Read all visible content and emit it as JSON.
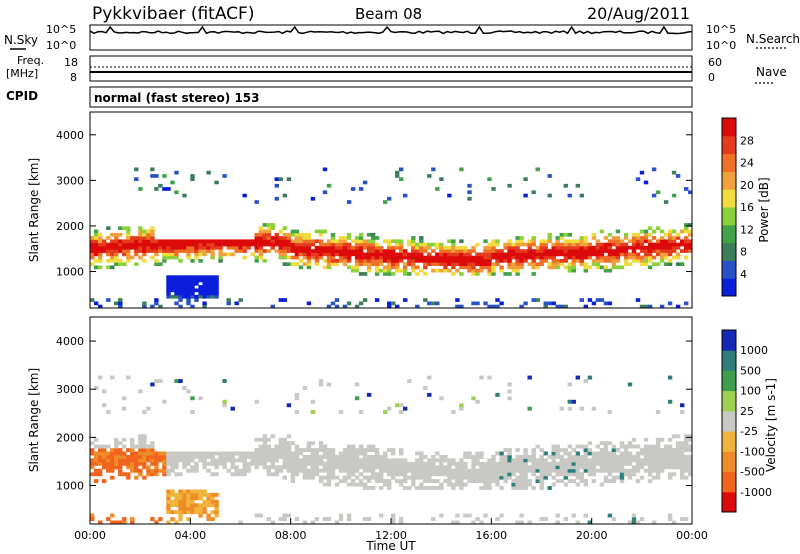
{
  "header": {
    "station": "Pykkvibaer (fitACF)",
    "beam": "Beam 08",
    "date": "20/Aug/2011"
  },
  "noise_panel": {
    "left_label": "N.Sky",
    "right_label": "N.Search",
    "scale_left": [
      "10^5",
      "10^0"
    ],
    "scale_right": [
      "10^5",
      "10^0"
    ]
  },
  "freq_panel": {
    "left_label_line1": "Freq.",
    "left_label_line2": "[MHz]",
    "left_ticks": [
      "18",
      "8"
    ],
    "right_label": "Nave",
    "right_ticks": [
      "60",
      "0"
    ]
  },
  "cpid": {
    "label": "CPID",
    "text": "normal (fast stereo) 153"
  },
  "colors": {
    "power_scale": [
      "#0a1edc",
      "#2850c8",
      "#3c7e5a",
      "#42a24a",
      "#8cd03c",
      "#f0dc3c",
      "#f0a03c",
      "#f07028",
      "#e63c1e",
      "#dc0a0a"
    ],
    "velocity_scale": [
      "#1428b4",
      "#2e7e7a",
      "#3e9e4e",
      "#a0d050",
      "#c8c8c4",
      "#f0b43c",
      "#f08c28",
      "#f0641e",
      "#dc0a0a"
    ]
  },
  "chart_data": [
    {
      "type": "heatmap",
      "panel": "power",
      "ylabel": "Slant Range [km]",
      "ylim": [
        200,
        4500
      ],
      "xlim": [
        0,
        24
      ],
      "yticks": [
        "1000",
        "2000",
        "3000",
        "4000"
      ],
      "colorbar_label": "Power [dB]",
      "colorbar_ticks": [
        "4",
        "8",
        "12",
        "16",
        "20",
        "24",
        "28"
      ],
      "colorbar_range": [
        0,
        30
      ],
      "dominant_echo_band": {
        "x": [
          0,
          24
        ],
        "y_km": [
          1200,
          2300
        ]
      }
    },
    {
      "type": "heatmap",
      "panel": "velocity",
      "ylabel": "Slant Range [km]",
      "xlabel": "Time UT",
      "ylim": [
        200,
        4500
      ],
      "xlim": [
        0,
        24
      ],
      "yticks": [
        "1000",
        "2000",
        "3000",
        "4000"
      ],
      "xticks": [
        "00:00",
        "04:00",
        "08:00",
        "12:00",
        "16:00",
        "20:00",
        "00:00"
      ],
      "colorbar_label": "Velocity [m s-1]",
      "colorbar_ticks": [
        "1000",
        "500",
        "100",
        "25",
        "-25",
        "-100",
        "-500",
        "-1000"
      ],
      "dominant_echo_band": {
        "x": [
          0,
          24
        ],
        "y_km": [
          1200,
          2300
        ]
      }
    }
  ]
}
